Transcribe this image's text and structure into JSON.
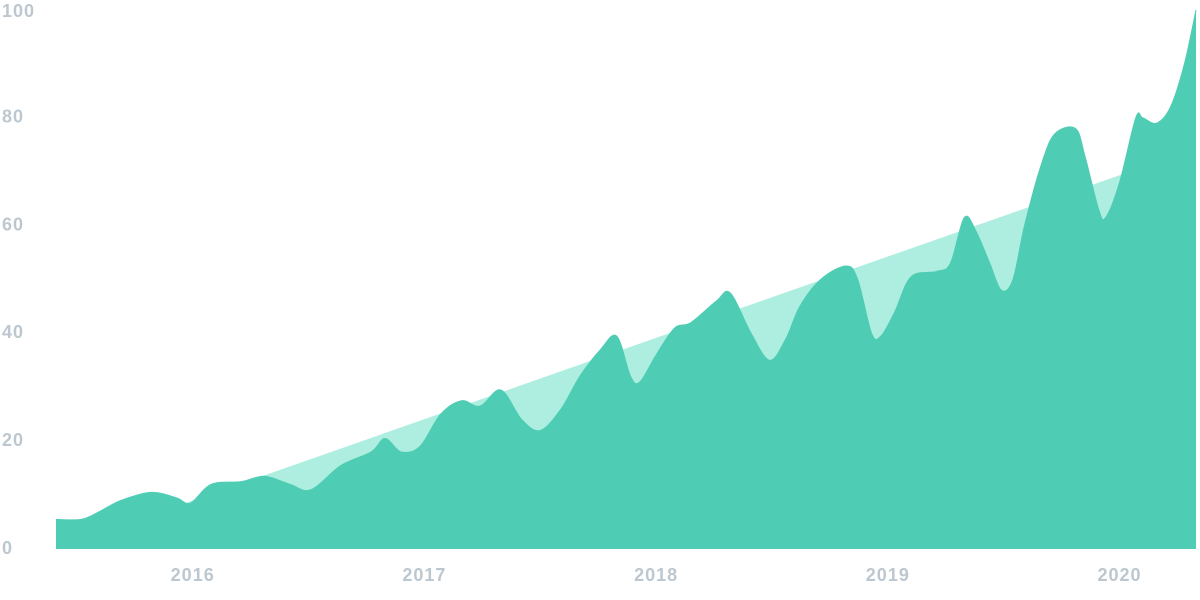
{
  "chart_data": {
    "type": "area",
    "xlim": [
      2015.41,
      2020.33
    ],
    "xticks": [
      2016,
      2017,
      2018,
      2019,
      2020
    ],
    "ylim": [
      0,
      100
    ],
    "yticks": [
      0,
      20,
      40,
      60,
      80,
      100
    ],
    "grid": false,
    "series": [
      {
        "color": "#aeeee0",
        "x": [
          2015.41,
          2020.05
        ],
        "values": [
          0,
          70
        ]
      },
      {
        "color": "#4ecdb4",
        "x": [
          2015.41,
          2015.52,
          2015.6,
          2015.69,
          2015.82,
          2015.93,
          2015.99,
          2016.08,
          2016.21,
          2016.31,
          2016.42,
          2016.51,
          2016.64,
          2016.77,
          2016.83,
          2016.9,
          2016.98,
          2017.07,
          2017.16,
          2017.24,
          2017.33,
          2017.42,
          2017.5,
          2017.59,
          2017.67,
          2017.76,
          2017.83,
          2017.89,
          2017.93,
          2018.0,
          2018.08,
          2018.15,
          2018.26,
          2018.32,
          2018.41,
          2018.49,
          2018.56,
          2018.62,
          2018.71,
          2018.82,
          2018.87,
          2018.93,
          2018.97,
          2019.03,
          2019.1,
          2019.21,
          2019.27,
          2019.33,
          2019.38,
          2019.44,
          2019.49,
          2019.54,
          2019.59,
          2019.66,
          2019.72,
          2019.81,
          2019.85,
          2019.91,
          2019.94,
          2020.0,
          2020.07,
          2020.1,
          2020.16,
          2020.22,
          2020.28,
          2020.33
        ],
        "values": [
          5.5,
          5.5,
          7,
          9,
          10.5,
          9.5,
          8.5,
          12,
          12.5,
          13.5,
          12,
          11,
          15.5,
          18,
          20.5,
          18,
          19,
          25,
          27.5,
          26.5,
          29.5,
          24,
          22,
          26,
          32,
          37,
          39.5,
          32,
          31,
          36,
          41,
          42,
          46,
          47.5,
          40,
          35,
          39,
          45,
          50,
          52.5,
          50,
          40,
          39.5,
          44,
          50.5,
          51.5,
          53,
          61.5,
          59,
          53,
          48,
          50,
          60,
          71,
          77,
          78,
          73,
          63,
          61.5,
          68,
          80,
          80,
          79,
          82,
          90,
          100
        ]
      }
    ]
  }
}
